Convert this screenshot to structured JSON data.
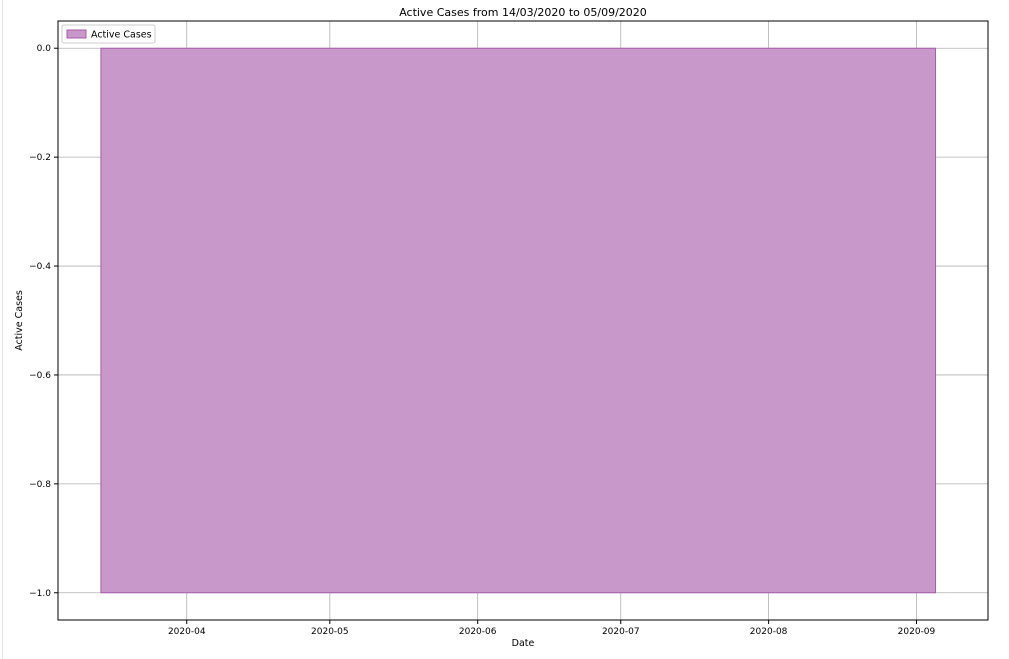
{
  "chart_data": {
    "type": "area",
    "title": "Active Cases from 14/03/2020 to 05/09/2020",
    "xlabel": "Date",
    "ylabel": "Active Cases",
    "x_start": "2020-03-14",
    "x_end": "2020-09-05",
    "xlim": [
      "2020-03-05",
      "2020-09-16"
    ],
    "ylim": [
      -1.05,
      0.05
    ],
    "yticks": [
      0.0,
      -0.2,
      -0.4,
      -0.6,
      -0.8,
      -1.0
    ],
    "ytick_labels": [
      "0.0",
      "−0.2",
      "−0.4",
      "−0.6",
      "−0.8",
      "−1.0"
    ],
    "xticks": [
      "2020-04-01",
      "2020-05-01",
      "2020-06-01",
      "2020-07-01",
      "2020-08-01",
      "2020-09-01"
    ],
    "xtick_labels": [
      "2020-04",
      "2020-05",
      "2020-06",
      "2020-07",
      "2020-08",
      "2020-09"
    ],
    "series": [
      {
        "name": "Active Cases",
        "x": [
          "2020-03-14",
          "2020-09-05"
        ],
        "upper": [
          0.0,
          0.0
        ],
        "lower": [
          -1.0,
          -1.0
        ],
        "color": "#c998cb",
        "edge_color": "#a85aaa"
      }
    ],
    "legend": {
      "placement": "top-left",
      "entries": [
        "Active Cases"
      ]
    },
    "grid": true
  }
}
